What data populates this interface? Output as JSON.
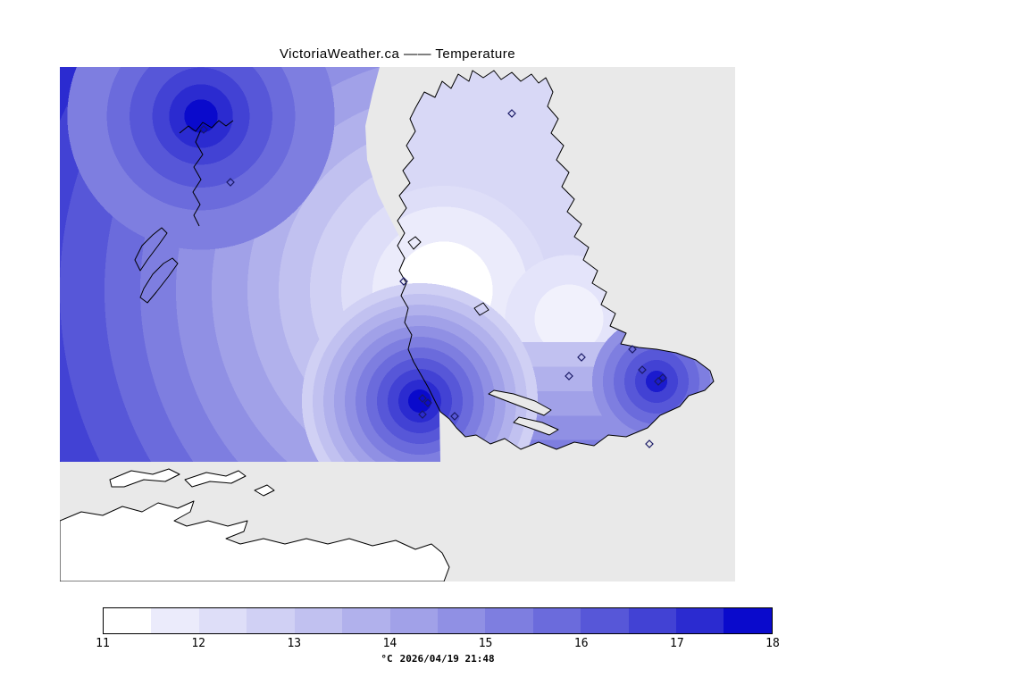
{
  "title": "VictoriaWeather.ca —— Temperature",
  "map": {
    "sea_color": "#e9e9e9",
    "no_data_land_color": "#ffffff",
    "coastline_color": "#000000",
    "station_marker_shape": "diamond",
    "stations": [
      [
        161,
        70
      ],
      [
        191,
        129
      ],
      [
        506,
        52
      ],
      [
        385,
        240
      ],
      [
        641,
        316
      ],
      [
        584,
        325
      ],
      [
        570,
        346
      ],
      [
        652,
        339
      ],
      [
        670,
        352
      ],
      [
        675,
        348
      ],
      [
        406,
        371
      ],
      [
        412,
        376
      ],
      [
        406,
        389
      ],
      [
        442,
        391
      ],
      [
        660,
        422
      ]
    ]
  },
  "colorbar": {
    "unit_label": "°C",
    "timestamp": "2026/04/19 21:48",
    "min": 11,
    "max": 18,
    "step": 0.5,
    "tick_labels": [
      "11",
      "12",
      "13",
      "14",
      "15",
      "16",
      "17",
      "18"
    ],
    "segment_colors": [
      "#ffffff",
      "#ebebfb",
      "#dedef8",
      "#d0d0f4",
      "#c1c1f0",
      "#b1b1ec",
      "#a1a1e8",
      "#9090e4",
      "#7e7ee0",
      "#6b6bdc",
      "#5757d8",
      "#4242d4",
      "#2b2bd0",
      "#0a0acc"
    ]
  },
  "chart_data": {
    "type": "heatmap",
    "title": "VictoriaWeather.ca —— Temperature",
    "variable": "Temperature",
    "units": "°C",
    "timestamp": "2026/04/19 21:48",
    "scale_min": 11,
    "scale_max": 18,
    "scale_step": 0.5,
    "colorbar_tick_labels": [
      "11",
      "12",
      "13",
      "14",
      "15",
      "16",
      "17",
      "18"
    ],
    "legend_position": "bottom",
    "features": [
      {
        "name": "warm-maximum-northwest",
        "approx_temp_c": 18
      },
      {
        "name": "warm-maximum-south-central-coast",
        "approx_temp_c": 18
      },
      {
        "name": "warm-maximum-southeast-point",
        "approx_temp_c": 17
      },
      {
        "name": "cool-minimum-central-inlet",
        "approx_temp_c": 11
      },
      {
        "name": "cool-region-northeast-peninsula",
        "approx_temp_c": 12.5
      },
      {
        "name": "broad-warm-region-west",
        "approx_temp_c": 16
      }
    ]
  }
}
